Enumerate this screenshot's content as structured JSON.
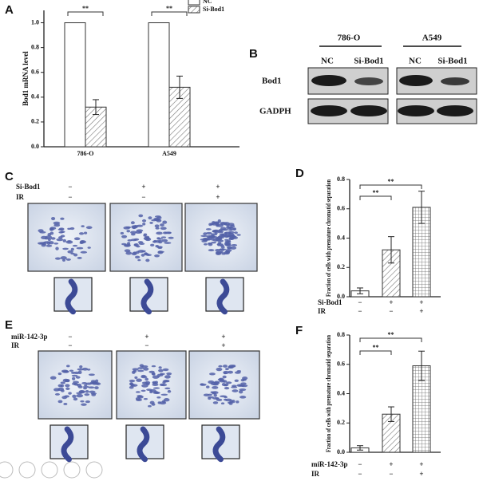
{
  "chart_data": [
    {
      "type": "bar",
      "panel_label": "A",
      "ylabel": "Bod1 mRNA level",
      "categories": [
        "786-O",
        "A549"
      ],
      "series": [
        {
          "name": "NC",
          "color": "#ffffff",
          "pattern": "none",
          "values": [
            1.0,
            1.0
          ],
          "errors": [
            0,
            0
          ]
        },
        {
          "name": "Si-Bod1",
          "color": "#ffffff",
          "pattern": "diagonal",
          "values": [
            0.32,
            0.48
          ],
          "errors": [
            0.06,
            0.09
          ]
        }
      ],
      "ylim": [
        0,
        1.1
      ],
      "yticks": [
        {
          "value": 0,
          "label": "0.0"
        },
        0.2,
        0.4,
        0.6,
        0.8,
        {
          "value": 1,
          "label": "1.0"
        }
      ],
      "annotations": [
        "**",
        "**"
      ]
    },
    {
      "type": "bar",
      "panel_label": "D",
      "ylabel": "Fraction of cells with premature chromatid separation",
      "values": [
        0.04,
        0.32,
        0.61
      ],
      "errors": [
        0.02,
        0.09,
        0.11
      ],
      "patterns": [
        "none",
        "diagonal",
        "grid"
      ],
      "color": "#ffffff",
      "conditions": [
        {
          "name": "Si-Bod1",
          "marks": [
            "−",
            "+",
            "+"
          ]
        },
        {
          "name": "IR",
          "marks": [
            "−",
            "−",
            "+"
          ]
        }
      ],
      "ylim": [
        0,
        0.8
      ],
      "yticks": [
        {
          "value": 0,
          "label": "0.0"
        },
        0.2,
        0.4,
        0.6,
        0.8
      ],
      "annotations": [
        "**",
        "**"
      ]
    },
    {
      "type": "bar",
      "panel_label": "F",
      "ylabel": "Fraction of cells with premature chromatid separation",
      "values": [
        0.03,
        0.26,
        0.59
      ],
      "errors": [
        0.015,
        0.05,
        0.1
      ],
      "patterns": [
        "none",
        "diagonal",
        "grid"
      ],
      "color": "#ffffff",
      "conditions": [
        {
          "name": "miR-142-3p",
          "marks": [
            "−",
            "+",
            "+"
          ]
        },
        {
          "name": "IR",
          "marks": [
            "−",
            "−",
            "+"
          ]
        }
      ],
      "ylim": [
        0,
        0.8
      ],
      "yticks": [
        {
          "value": 0,
          "label": "0.0"
        },
        0.2,
        0.4,
        0.6,
        0.8
      ],
      "annotations": [
        "**",
        "**"
      ]
    }
  ],
  "panels": {
    "B": {
      "label": "B",
      "cell_lines": [
        "786-O",
        "A549"
      ],
      "lanes": [
        "NC",
        "Si-Bod1",
        "NC",
        "Si-Bod1"
      ],
      "rows": [
        "Bod1",
        "GADPH"
      ]
    },
    "C": {
      "label": "C",
      "conditions": [
        {
          "name": "Si-Bod1",
          "marks": [
            "−",
            "+",
            "+"
          ]
        },
        {
          "name": "IR",
          "marks": [
            "−",
            "−",
            "+"
          ]
        }
      ]
    },
    "E": {
      "label": "E",
      "conditions": [
        {
          "name": "miR-142-3p",
          "marks": [
            "−",
            "+",
            "+"
          ]
        },
        {
          "name": "IR",
          "marks": [
            "−",
            "−",
            "+"
          ]
        }
      ]
    }
  }
}
